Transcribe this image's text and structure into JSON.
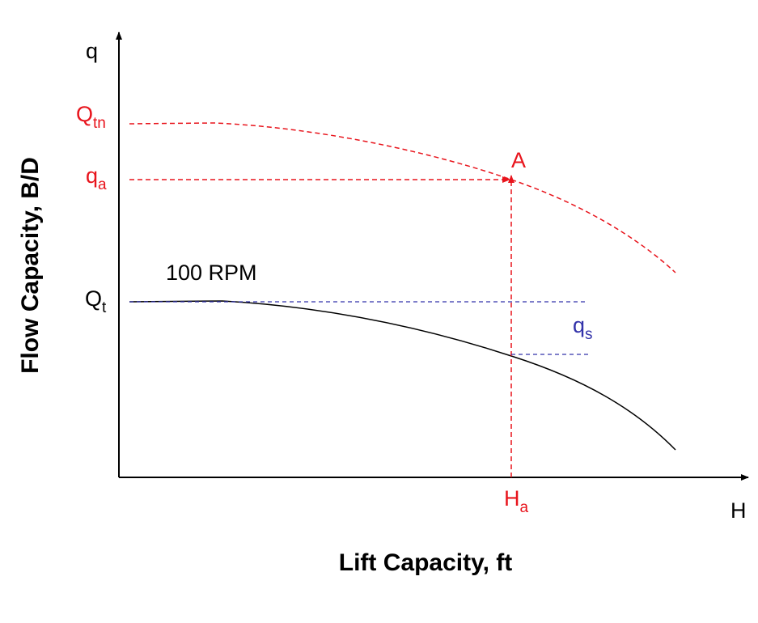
{
  "axes": {
    "y_symbol": "q",
    "x_symbol": "H",
    "y_title": "Flow Capacity, B/D",
    "x_title": "Lift Capacity, ft"
  },
  "labels": {
    "q_tn": {
      "main": "Q",
      "sub": "tn"
    },
    "q_a": {
      "main": "q",
      "sub": "a"
    },
    "q_t": {
      "main": "Q",
      "sub": "t"
    },
    "h_a": {
      "main": "H",
      "sub": "a"
    },
    "q_s": {
      "main": "q",
      "sub": "s"
    },
    "point": "A",
    "speed": "100 RPM"
  }
}
